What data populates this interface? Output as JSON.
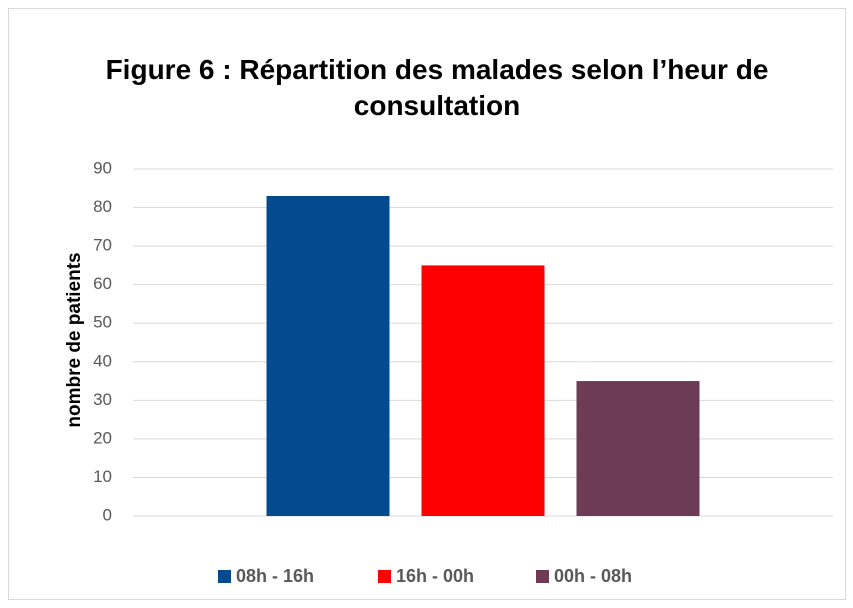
{
  "chart_data": {
    "type": "bar",
    "title": "Figure 6 : Répartition des malades selon l’heur de consultation",
    "y_label": "nombre de patients",
    "categories": [
      null
    ],
    "series": [
      {
        "name": "08h - 16h",
        "color": "#034a8f",
        "values": [
          83
        ]
      },
      {
        "name": "16h - 00h",
        "color": "#ff0000",
        "values": [
          65
        ]
      },
      {
        "name": "00h - 08h",
        "color": "#6e3b56",
        "values": [
          35
        ]
      }
    ],
    "ylim": [
      0,
      90
    ],
    "yticks": [
      0,
      10,
      20,
      30,
      40,
      50,
      60,
      70,
      80,
      90
    ],
    "grid": true,
    "legend": "bottom"
  }
}
